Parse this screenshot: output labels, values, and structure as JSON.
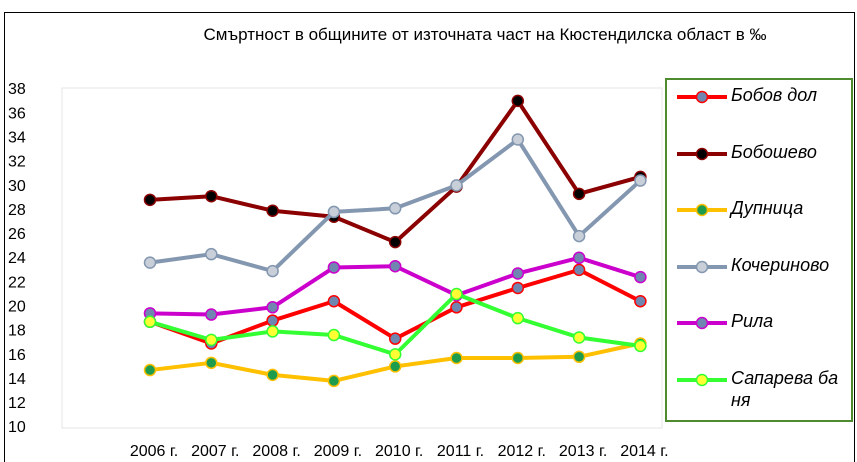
{
  "chart_data": {
    "type": "line",
    "title": "Смъртност в общините от източната част на Кюстендилска област в ‰",
    "categories": [
      "2006 г.",
      "2007 г.",
      "2008 г.",
      "2009 г.",
      "2010 г.",
      "2011 г.",
      "2012 г.",
      "2013 г.",
      "2014 г."
    ],
    "ylim": [
      10,
      38
    ],
    "yticks": [
      10,
      12,
      14,
      16,
      18,
      20,
      22,
      24,
      26,
      28,
      30,
      32,
      34,
      36,
      38
    ],
    "legend": "right",
    "series": [
      {
        "name": "Бобов дол",
        "color": "#ff0000",
        "marker_color": "#6f86b0",
        "values": [
          18.8,
          17.0,
          18.9,
          20.5,
          17.4,
          20.0,
          21.6,
          23.1,
          20.5
        ]
      },
      {
        "name": "Бобошево",
        "color": "#8b0000",
        "marker_color": "#000000",
        "values": [
          28.9,
          29.2,
          28.0,
          27.5,
          25.4,
          30.0,
          37.1,
          29.4,
          30.8
        ]
      },
      {
        "name": "Дупница",
        "color": "#ffc000",
        "marker_color": "#1e9c4e",
        "values": [
          14.8,
          15.4,
          14.4,
          13.9,
          15.1,
          15.8,
          15.8,
          15.9,
          17.0
        ]
      },
      {
        "name": "Кочериново",
        "color": "#8497b0",
        "marker_color": "#c9cfd8",
        "values": [
          23.7,
          24.4,
          23.0,
          27.9,
          28.2,
          30.1,
          33.9,
          25.9,
          30.5
        ]
      },
      {
        "name": "Рила",
        "color": "#cc00cc",
        "marker_color": "#7086b0",
        "values": [
          19.5,
          19.4,
          20.0,
          23.3,
          23.4,
          21.0,
          22.8,
          24.1,
          22.5
        ]
      },
      {
        "name": "Сапарева баня",
        "color": "#33ff33",
        "marker_color": "#ffff33",
        "values": [
          18.8,
          17.3,
          18.0,
          17.7,
          16.1,
          21.1,
          19.1,
          17.5,
          16.8
        ]
      }
    ]
  }
}
